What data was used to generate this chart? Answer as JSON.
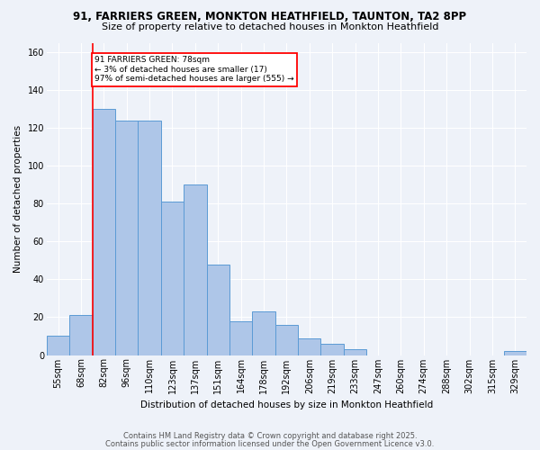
{
  "title1": "91, FARRIERS GREEN, MONKTON HEATHFIELD, TAUNTON, TA2 8PP",
  "title2": "Size of property relative to detached houses in Monkton Heathfield",
  "xlabel": "Distribution of detached houses by size in Monkton Heathfield",
  "ylabel": "Number of detached properties",
  "bins": [
    "55sqm",
    "68sqm",
    "82sqm",
    "96sqm",
    "110sqm",
    "123sqm",
    "137sqm",
    "151sqm",
    "164sqm",
    "178sqm",
    "192sqm",
    "206sqm",
    "219sqm",
    "233sqm",
    "247sqm",
    "260sqm",
    "274sqm",
    "288sqm",
    "302sqm",
    "315sqm",
    "329sqm"
  ],
  "values": [
    10,
    21,
    130,
    124,
    124,
    81,
    90,
    48,
    18,
    23,
    16,
    9,
    6,
    3,
    0,
    0,
    0,
    0,
    0,
    0,
    2
  ],
  "bar_color": "#aec6e8",
  "bar_edge_color": "#5b9bd5",
  "red_line_x": 2,
  "annotation_text": "91 FARRIERS GREEN: 78sqm\n← 3% of detached houses are smaller (17)\n97% of semi-detached houses are larger (555) →",
  "annotation_box_color": "white",
  "annotation_box_edge_color": "red",
  "footer1": "Contains HM Land Registry data © Crown copyright and database right 2025.",
  "footer2": "Contains public sector information licensed under the Open Government Licence v3.0.",
  "bg_color": "#eef2f9",
  "ylim": [
    0,
    165
  ],
  "grid_color": "white",
  "title1_fontsize": 8.5,
  "title2_fontsize": 8,
  "ylabel_fontsize": 7.5,
  "xlabel_fontsize": 7.5,
  "tick_fontsize": 7,
  "footer_fontsize": 6
}
